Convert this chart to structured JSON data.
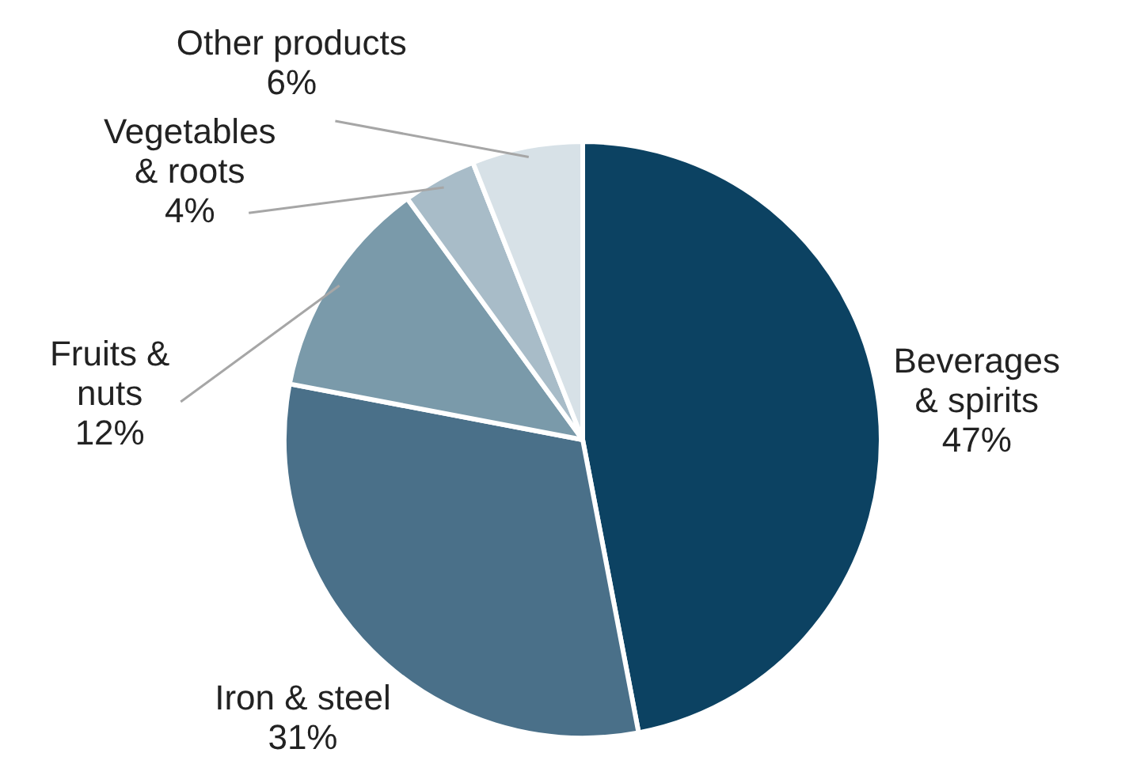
{
  "chart_data": {
    "type": "pie",
    "categories": [
      "Beverages & spirits",
      "Iron & steel",
      "Fruits & nuts",
      "Vegetables & roots",
      "Other products"
    ],
    "values": [
      47,
      31,
      12,
      4,
      6
    ],
    "colors": [
      "#0c4262",
      "#4a7089",
      "#7a9aaa",
      "#a8bcc8",
      "#d7e1e7"
    ],
    "value_labels": [
      "47%",
      "31%",
      "12%",
      "4%",
      "6%"
    ],
    "legend": false
  }
}
